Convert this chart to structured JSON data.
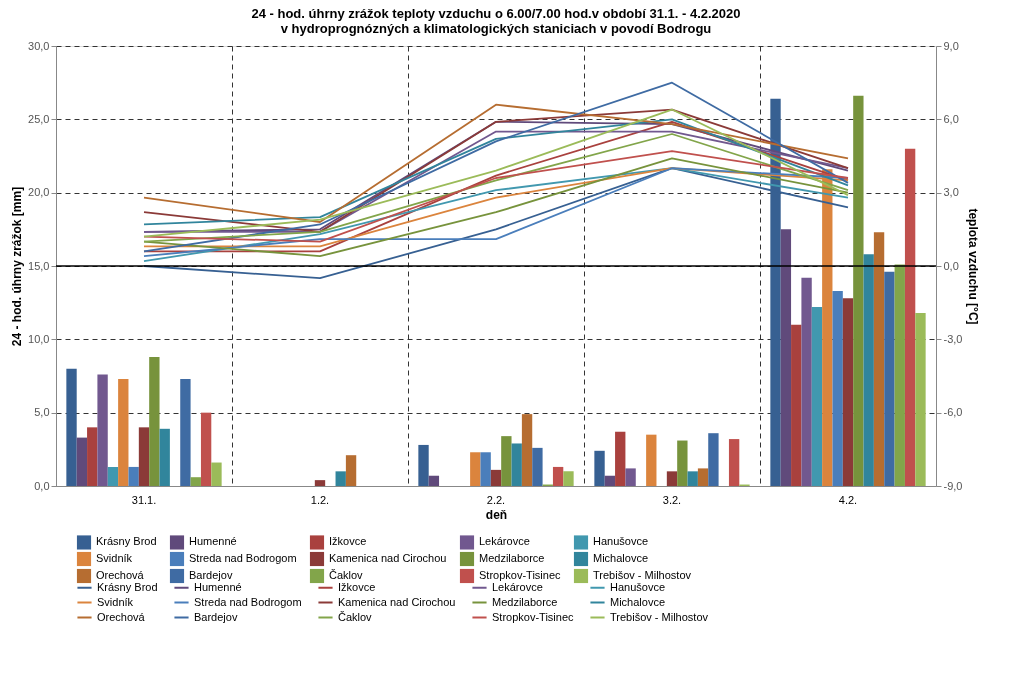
{
  "chart_data": {
    "type": "bar",
    "title": "24 - hod. úhrny zrážok teploty vzduchu o 6.00/7.00 hod.v období  31.1. - 4.2.2020\nv hydroprognózných a klimatologických staniciach  v povodí  Bodrogu",
    "xlabel": "deň",
    "ylabel": "24 - hod. úhrny zrážok  [mm]",
    "y2label": "teplota vzduchu [°C]",
    "categories": [
      "31.1.",
      "1.2.",
      "2.2.",
      "3.2.",
      "4.2."
    ],
    "ylim": [
      0,
      30
    ],
    "yticks": [
      {
        "value": 0,
        "label": "0,0"
      },
      {
        "value": 5,
        "label": "5,0"
      },
      {
        "value": 10,
        "label": "10,0"
      },
      {
        "value": 15,
        "label": "15,0"
      },
      {
        "value": 20,
        "label": "20,0"
      },
      {
        "value": 25,
        "label": "25,0"
      },
      {
        "value": 30,
        "label": "30,0"
      }
    ],
    "y2lim": [
      -9,
      9
    ],
    "y2ticks": [
      {
        "value": -9,
        "label": "-9,0"
      },
      {
        "value": -6,
        "label": "-6,0"
      },
      {
        "value": -3,
        "label": "-3,0"
      },
      {
        "value": 0,
        "label": "0,0"
      },
      {
        "value": 3,
        "label": "3,0"
      },
      {
        "value": 6,
        "label": "6,0"
      },
      {
        "value": 9,
        "label": "9,0"
      }
    ],
    "grid": true,
    "legend": "bottom",
    "ref_lines": [
      {
        "axis": "y2",
        "value": 0,
        "color": "#000000",
        "line_style": "solid"
      }
    ],
    "series": [
      {
        "name": "Krásny Brod",
        "color": "#376092",
        "values": [
          8.0,
          0,
          2.8,
          2.4,
          26.4
        ]
      },
      {
        "name": "Humenné",
        "color": "#604a7b",
        "values": [
          3.3,
          0,
          0.7,
          0.7,
          17.5
        ]
      },
      {
        "name": "Ižkovce",
        "color": "#a9413e",
        "values": [
          4.0,
          0,
          0,
          3.7,
          11.0
        ]
      },
      {
        "name": "Lekárovce",
        "color": "#71588f",
        "values": [
          7.6,
          0,
          0,
          1.2,
          14.2
        ]
      },
      {
        "name": "Hanušovce",
        "color": "#4198af",
        "values": [
          1.3,
          0,
          0,
          0,
          12.2
        ]
      },
      {
        "name": "Svidník",
        "color": "#db843d",
        "values": [
          7.3,
          0,
          2.3,
          3.5,
          21.6
        ]
      },
      {
        "name": "Streda nad Bodrogom",
        "color": "#4a7ebb",
        "values": [
          1.3,
          0,
          2.3,
          0,
          13.3
        ]
      },
      {
        "name": "Kamenica nad Cirochou",
        "color": "#8b3a38",
        "values": [
          4.0,
          0.4,
          1.1,
          1.0,
          12.8
        ]
      },
      {
        "name": "Medzilaborce",
        "color": "#77933c",
        "values": [
          8.8,
          0,
          3.4,
          3.1,
          26.6
        ]
      },
      {
        "name": "Michalovce",
        "color": "#31859c",
        "values": [
          3.9,
          1.0,
          2.9,
          1.0,
          15.8
        ]
      },
      {
        "name": "Orechová",
        "color": "#b66d31",
        "values": [
          0,
          2.1,
          4.9,
          1.2,
          17.3
        ]
      },
      {
        "name": "Bardejov",
        "color": "#3f6ba3",
        "values": [
          7.3,
          0,
          2.6,
          3.6,
          14.6
        ]
      },
      {
        "name": "Čaklov",
        "color": "#82a54a",
        "values": [
          0.6,
          0,
          0.1,
          0,
          15.1
        ]
      },
      {
        "name": "Stropkov-Tisinec",
        "color": "#c0504d",
        "values": [
          5.0,
          0,
          1.3,
          3.2,
          23.0
        ]
      },
      {
        "name": "Trebišov - Milhostov",
        "color": "#9bbb59",
        "values": [
          1.6,
          0,
          1.0,
          0.1,
          11.8
        ]
      },
      {
        "name": "Krásny Brod",
        "type": "line",
        "axis": "y2",
        "color": "#376092",
        "values": [
          0.0,
          -0.5,
          1.5,
          4.0,
          2.4
        ]
      },
      {
        "name": "Humenné",
        "type": "line",
        "axis": "y2",
        "color": "#604a7b",
        "values": [
          1.4,
          1.5,
          5.9,
          5.8,
          3.9
        ]
      },
      {
        "name": "Ižkovce",
        "type": "line",
        "axis": "y2",
        "color": "#a9413e",
        "values": [
          0.6,
          0.6,
          3.7,
          5.9,
          3.5
        ]
      },
      {
        "name": "Lekárovce",
        "type": "line",
        "axis": "y2",
        "color": "#71588f",
        "values": [
          1.4,
          1.4,
          5.5,
          5.5,
          4.0
        ]
      },
      {
        "name": "Hanušovce",
        "type": "line",
        "axis": "y2",
        "color": "#4198af",
        "values": [
          0.2,
          1.3,
          3.1,
          4.0,
          2.8
        ]
      },
      {
        "name": "Svidník",
        "type": "line",
        "axis": "y2",
        "color": "#db843d",
        "values": [
          0.8,
          0.8,
          2.8,
          4.0,
          3.5
        ]
      },
      {
        "name": "Streda nad Bodrogom",
        "type": "line",
        "axis": "y2",
        "color": "#4a7ebb",
        "values": [
          0.4,
          1.1,
          1.1,
          4.0,
          3.6
        ]
      },
      {
        "name": "Kamenica nad Cirochou",
        "type": "line",
        "axis": "y2",
        "color": "#8b3a38",
        "values": [
          2.2,
          1.4,
          5.9,
          6.4,
          4.0
        ]
      },
      {
        "name": "Medzilaborce",
        "type": "line",
        "axis": "y2",
        "color": "#77933c",
        "values": [
          1.0,
          0.4,
          2.2,
          4.4,
          3.0
        ]
      },
      {
        "name": "Michalovce",
        "type": "line",
        "axis": "y2",
        "color": "#31859c",
        "values": [
          1.7,
          2.0,
          5.2,
          6.0,
          3.3
        ]
      },
      {
        "name": "Orechová",
        "type": "line",
        "axis": "y2",
        "color": "#b66d31",
        "values": [
          2.8,
          1.8,
          6.6,
          5.8,
          4.4
        ]
      },
      {
        "name": "Bardejov",
        "type": "line",
        "axis": "y2",
        "color": "#3f6ba3",
        "values": [
          0.6,
          1.7,
          5.1,
          7.5,
          3.4
        ]
      },
      {
        "name": "Čaklov",
        "type": "line",
        "axis": "y2",
        "color": "#82a54a",
        "values": [
          1.0,
          1.4,
          3.5,
          5.4,
          3.1
        ]
      },
      {
        "name": "Stropkov-Tisinec",
        "type": "line",
        "axis": "y2",
        "color": "#c0504d",
        "values": [
          1.2,
          1.0,
          3.6,
          4.7,
          3.6
        ]
      },
      {
        "name": "Trebišov - Milhostov",
        "type": "line",
        "axis": "y2",
        "color": "#9bbb59",
        "values": [
          1.2,
          1.9,
          3.9,
          6.4,
          2.9
        ]
      }
    ]
  }
}
